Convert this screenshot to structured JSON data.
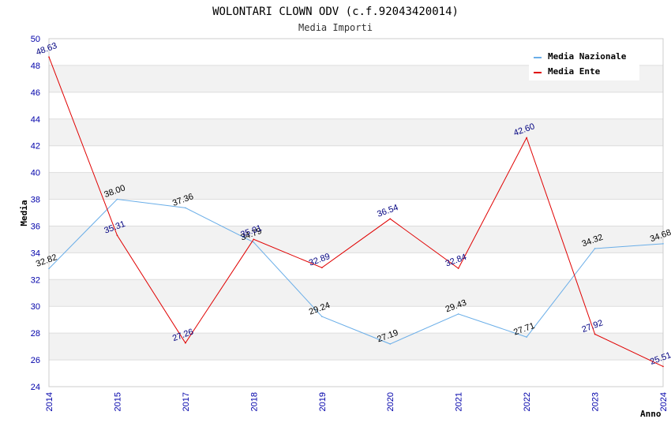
{
  "chart_data": {
    "type": "line",
    "title": "WOLONTARI CLOWN ODV (c.f.92043420014)",
    "subtitle": "Media Importi",
    "xlabel": "Anno",
    "ylabel": "Media",
    "ylim": [
      24,
      50
    ],
    "ytick_step": 2,
    "categories": [
      "2014",
      "2015",
      "2017",
      "2018",
      "2019",
      "2020",
      "2021",
      "2022",
      "2023",
      "2024"
    ],
    "series": [
      {
        "name": "Media Nazionale",
        "color": "#6aaee8",
        "label_color": "#000000",
        "values": [
          32.82,
          38.0,
          37.36,
          34.79,
          29.24,
          27.19,
          29.43,
          27.71,
          34.32,
          34.68
        ],
        "labels": [
          "32.82",
          "38.00",
          "37.36",
          "34.79",
          "29.24",
          "27.19",
          "29.43",
          "27.71",
          "34.32",
          "34.68"
        ]
      },
      {
        "name": "Media Ente",
        "color": "#e00000",
        "label_color": "#000080",
        "values": [
          48.63,
          35.31,
          27.26,
          35.01,
          32.89,
          36.54,
          32.84,
          42.6,
          27.92,
          25.51
        ],
        "labels": [
          "48.63",
          "35.31",
          "27.26",
          "35.01",
          "32.89",
          "36.54",
          "32.84",
          "42.60",
          "27.92",
          "25.51"
        ]
      }
    ],
    "grid": true,
    "legend": "top-right"
  }
}
